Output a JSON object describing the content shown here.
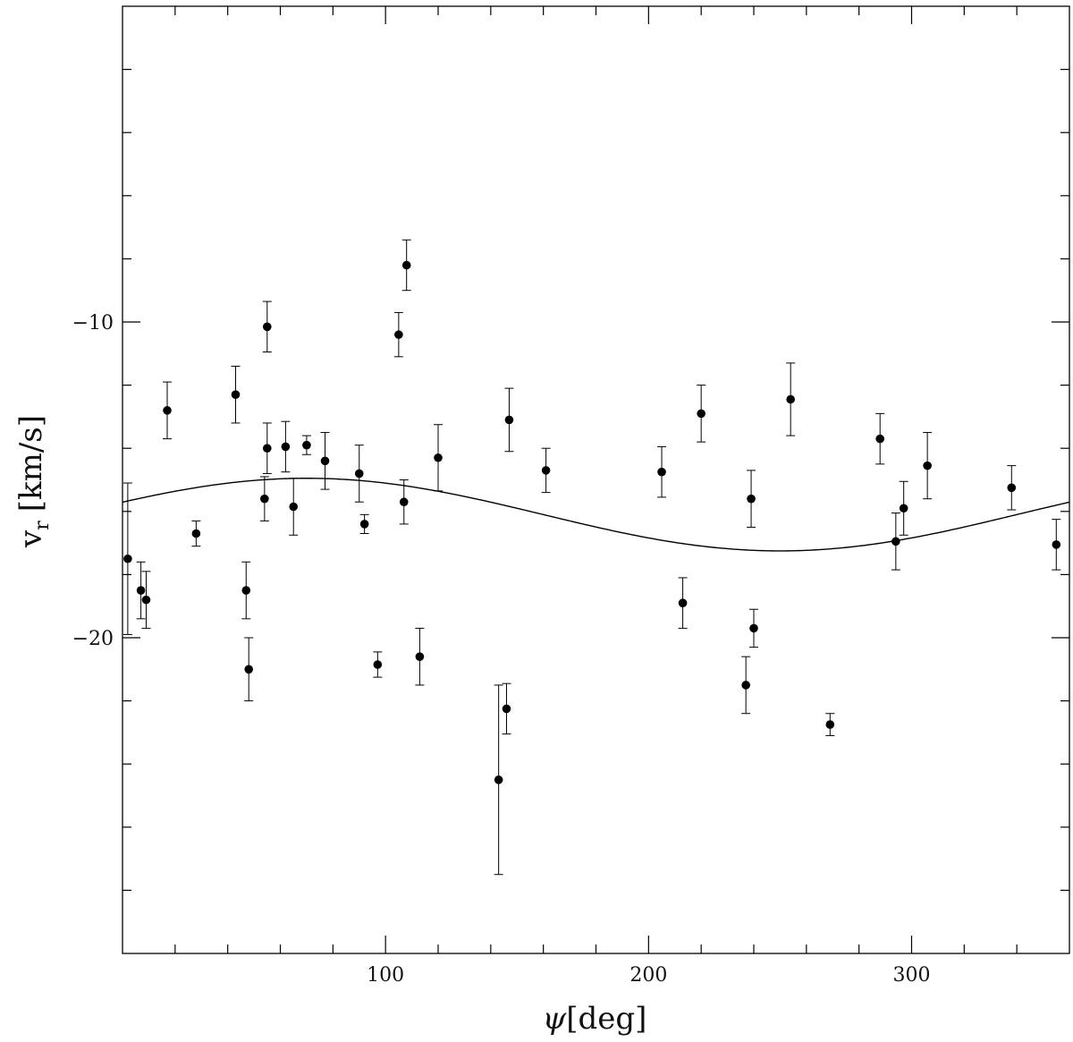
{
  "chart_data": {
    "type": "scatter",
    "title": "",
    "xlabel": "ψ[deg]",
    "ylabel": "v_r [km/s]",
    "xlabel_parts": {
      "symbol": "ψ",
      "unit": "[deg]"
    },
    "ylabel_parts": {
      "symbol": "v",
      "sub": "r",
      "unit": "[km/s]"
    },
    "xlim": [
      0,
      360
    ],
    "ylim": [
      -30,
      0
    ],
    "x_ticks": [
      100,
      200,
      300
    ],
    "y_ticks": [
      -10,
      -20
    ],
    "x_tick_labels": [
      "100",
      "200",
      "300"
    ],
    "y_tick_labels": [
      "−10",
      "−20"
    ],
    "grid": false,
    "legend": "none",
    "colors": {
      "axis": "#000000",
      "points": "#000000",
      "curve": "#000000"
    },
    "series": [
      {
        "values": [
          {
            "x": 2,
            "y": -17.5,
            "yerr": 2.4
          },
          {
            "x": 7,
            "y": -18.5,
            "yerr": 0.9
          },
          {
            "x": 9,
            "y": -18.8,
            "yerr": 0.9
          },
          {
            "x": 17,
            "y": -12.8,
            "yerr": 0.9
          },
          {
            "x": 28,
            "y": -16.7,
            "yerr": 0.4
          },
          {
            "x": 43,
            "y": -12.3,
            "yerr": 0.9
          },
          {
            "x": 47,
            "y": -18.5,
            "yerr": 0.9
          },
          {
            "x": 48,
            "y": -21.0,
            "yerr": 1.0
          },
          {
            "x": 54,
            "y": -15.6,
            "yerr": 0.7
          },
          {
            "x": 55,
            "y": -10.15,
            "yerr": 0.8
          },
          {
            "x": 55,
            "y": -14.0,
            "yerr": 0.8
          },
          {
            "x": 62,
            "y": -13.95,
            "yerr": 0.8
          },
          {
            "x": 65,
            "y": -15.85,
            "yerr": 0.9
          },
          {
            "x": 70,
            "y": -13.9,
            "yerr": 0.3
          },
          {
            "x": 77,
            "y": -14.4,
            "yerr": 0.9
          },
          {
            "x": 90,
            "y": -14.8,
            "yerr": 0.9
          },
          {
            "x": 92,
            "y": -16.4,
            "yerr": 0.3
          },
          {
            "x": 97,
            "y": -20.85,
            "yerr": 0.4
          },
          {
            "x": 105,
            "y": -10.4,
            "yerr": 0.7
          },
          {
            "x": 107,
            "y": -15.7,
            "yerr": 0.7
          },
          {
            "x": 108,
            "y": -8.2,
            "yerr": 0.8
          },
          {
            "x": 113,
            "y": -20.6,
            "yerr": 0.9
          },
          {
            "x": 120,
            "y": -14.3,
            "yerr": 1.05
          },
          {
            "x": 143,
            "y": -24.5,
            "yerr": 3.0
          },
          {
            "x": 146,
            "y": -22.25,
            "yerr": 0.8
          },
          {
            "x": 147,
            "y": -13.1,
            "yerr": 1.0
          },
          {
            "x": 161,
            "y": -14.7,
            "yerr": 0.7
          },
          {
            "x": 205,
            "y": -14.75,
            "yerr": 0.8
          },
          {
            "x": 213,
            "y": -18.9,
            "yerr": 0.8
          },
          {
            "x": 220,
            "y": -12.9,
            "yerr": 0.9
          },
          {
            "x": 237,
            "y": -21.5,
            "yerr": 0.9
          },
          {
            "x": 239,
            "y": -15.6,
            "yerr": 0.9
          },
          {
            "x": 240,
            "y": -19.7,
            "yerr": 0.6
          },
          {
            "x": 254,
            "y": -12.45,
            "yerr": 1.15
          },
          {
            "x": 269,
            "y": -22.75,
            "yerr": 0.35
          },
          {
            "x": 288,
            "y": -13.7,
            "yerr": 0.8
          },
          {
            "x": 294,
            "y": -16.95,
            "yerr": 0.9
          },
          {
            "x": 297,
            "y": -15.9,
            "yerr": 0.85
          },
          {
            "x": 306,
            "y": -14.55,
            "yerr": 1.05
          },
          {
            "x": 338,
            "y": -15.25,
            "yerr": 0.7
          },
          {
            "x": 355,
            "y": -17.05,
            "yerr": 0.8
          }
        ]
      }
    ],
    "model_curve": {
      "type": "line",
      "formula": "y = -16.1 + 1.15 * cos(x - 70deg)",
      "mean": -16.1,
      "amplitude": 1.15,
      "phase_deg": 70
    }
  }
}
